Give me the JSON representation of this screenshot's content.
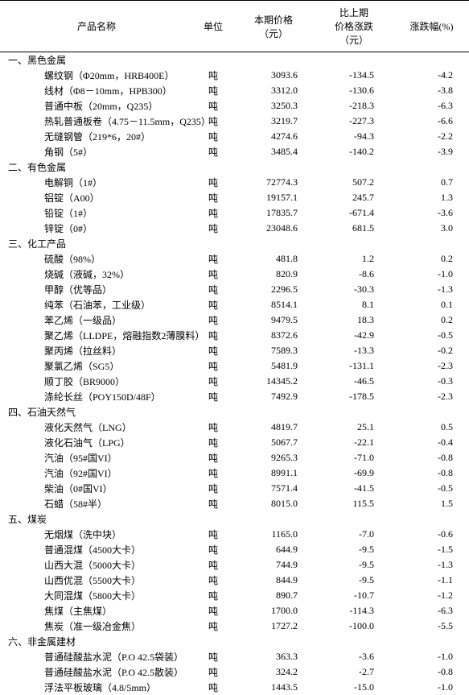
{
  "columns": {
    "name": "产品名称",
    "unit": "单位",
    "price": "本期价格\n（元）",
    "change": "比上期\n价格涨跌\n（元）",
    "pct": "涨跌幅(%)"
  },
  "sections": [
    {
      "title": "一、黑色金属",
      "rows": [
        {
          "name": "螺纹钢（Φ20mm，HRB400E）",
          "unit": "吨",
          "price": "3093.6",
          "change": "-134.5",
          "pct": "-4.2"
        },
        {
          "name": "线材（Φ8－10mm，HPB300）",
          "unit": "吨",
          "price": "3312.0",
          "change": "-130.6",
          "pct": "-3.8"
        },
        {
          "name": "普通中板（20mm，Q235）",
          "unit": "吨",
          "price": "3250.3",
          "change": "-218.3",
          "pct": "-6.3"
        },
        {
          "name": "热轧普通板卷（4.75－11.5mm，Q235）",
          "unit": "吨",
          "price": "3219.7",
          "change": "-227.3",
          "pct": "-6.6"
        },
        {
          "name": "无缝钢管（219*6，20#）",
          "unit": "吨",
          "price": "4274.6",
          "change": "-94.3",
          "pct": "-2.2"
        },
        {
          "name": "角钢（5#）",
          "unit": "吨",
          "price": "3485.4",
          "change": "-140.2",
          "pct": "-3.9"
        }
      ]
    },
    {
      "title": "二、有色金属",
      "rows": [
        {
          "name": "电解铜（1#）",
          "unit": "吨",
          "price": "72774.3",
          "change": "507.2",
          "pct": "0.7"
        },
        {
          "name": "铝锭（A00）",
          "unit": "吨",
          "price": "19157.1",
          "change": "245.7",
          "pct": "1.3"
        },
        {
          "name": "铅锭（1#）",
          "unit": "吨",
          "price": "17835.7",
          "change": "-671.4",
          "pct": "-3.6"
        },
        {
          "name": "锌锭（0#）",
          "unit": "吨",
          "price": "23048.6",
          "change": "681.5",
          "pct": "3.0"
        }
      ]
    },
    {
      "title": "三、化工产品",
      "rows": [
        {
          "name": "硫酸（98%）",
          "unit": "吨",
          "price": "481.8",
          "change": "1.2",
          "pct": "0.2"
        },
        {
          "name": "烧碱（液碱，32%）",
          "unit": "吨",
          "price": "820.9",
          "change": "-8.6",
          "pct": "-1.0"
        },
        {
          "name": "甲醇（优等品）",
          "unit": "吨",
          "price": "2296.5",
          "change": "-30.3",
          "pct": "-1.3"
        },
        {
          "name": "纯苯（石油苯，工业级）",
          "unit": "吨",
          "price": "8514.1",
          "change": "8.1",
          "pct": "0.1"
        },
        {
          "name": "苯乙烯（一级品）",
          "unit": "吨",
          "price": "9479.5",
          "change": "18.3",
          "pct": "0.2"
        },
        {
          "name": "聚乙烯（LLDPE，熔融指数2薄膜料）",
          "unit": "吨",
          "price": "8372.6",
          "change": "-42.9",
          "pct": "-0.5"
        },
        {
          "name": "聚丙烯（拉丝料）",
          "unit": "吨",
          "price": "7589.3",
          "change": "-13.3",
          "pct": "-0.2"
        },
        {
          "name": "聚氯乙烯（SG5）",
          "unit": "吨",
          "price": "5481.9",
          "change": "-131.1",
          "pct": "-2.3"
        },
        {
          "name": "顺丁胶（BR9000）",
          "unit": "吨",
          "price": "14345.2",
          "change": "-46.5",
          "pct": "-0.3"
        },
        {
          "name": "涤纶长丝（POY150D/48F）",
          "unit": "吨",
          "price": "7492.9",
          "change": "-178.5",
          "pct": "-2.3"
        }
      ]
    },
    {
      "title": "四、石油天然气",
      "rows": [
        {
          "name": "液化天然气（LNG）",
          "unit": "吨",
          "price": "4819.7",
          "change": "25.1",
          "pct": "0.5"
        },
        {
          "name": "液化石油气（LPG）",
          "unit": "吨",
          "price": "5067.7",
          "change": "-22.1",
          "pct": "-0.4"
        },
        {
          "name": "汽油（95#国VI）",
          "unit": "吨",
          "price": "9265.3",
          "change": "-71.0",
          "pct": "-0.8"
        },
        {
          "name": "汽油（92#国VI）",
          "unit": "吨",
          "price": "8991.1",
          "change": "-69.9",
          "pct": "-0.8"
        },
        {
          "name": "柴油（0#国VI）",
          "unit": "吨",
          "price": "7571.4",
          "change": "-41.5",
          "pct": "-0.5"
        },
        {
          "name": "石蜡（58#半）",
          "unit": "吨",
          "price": "8015.0",
          "change": "115.5",
          "pct": "1.5"
        }
      ]
    },
    {
      "title": "五、煤炭",
      "rows": [
        {
          "name": "无烟煤（洗中块）",
          "unit": "吨",
          "price": "1165.0",
          "change": "-7.0",
          "pct": "-0.6"
        },
        {
          "name": "普通混煤（4500大卡）",
          "unit": "吨",
          "price": "644.9",
          "change": "-9.5",
          "pct": "-1.5"
        },
        {
          "name": "山西大混（5000大卡）",
          "unit": "吨",
          "price": "744.9",
          "change": "-9.5",
          "pct": "-1.3"
        },
        {
          "name": "山西优混（5500大卡）",
          "unit": "吨",
          "price": "844.9",
          "change": "-9.5",
          "pct": "-1.1"
        },
        {
          "name": "大同混煤（5800大卡）",
          "unit": "吨",
          "price": "890.7",
          "change": "-10.7",
          "pct": "-1.2"
        },
        {
          "name": "焦煤（主焦煤）",
          "unit": "吨",
          "price": "1700.0",
          "change": "-114.3",
          "pct": "-6.3"
        },
        {
          "name": "焦炭（准一级冶金焦）",
          "unit": "吨",
          "price": "1727.2",
          "change": "-100.0",
          "pct": "-5.5"
        }
      ]
    },
    {
      "title": "六、非金属建材",
      "rows": [
        {
          "name": "普通硅酸盐水泥（P.O 42.5袋装）",
          "unit": "吨",
          "price": "363.3",
          "change": "-3.6",
          "pct": "-1.0"
        },
        {
          "name": "普通硅酸盐水泥（P.O 42.5散装）",
          "unit": "吨",
          "price": "324.2",
          "change": "-2.7",
          "pct": "-0.8"
        },
        {
          "name": "浮法平板玻璃（4.8/5mm）",
          "unit": "吨",
          "price": "1443.5",
          "change": "-15.0",
          "pct": "-1.0"
        }
      ]
    }
  ]
}
